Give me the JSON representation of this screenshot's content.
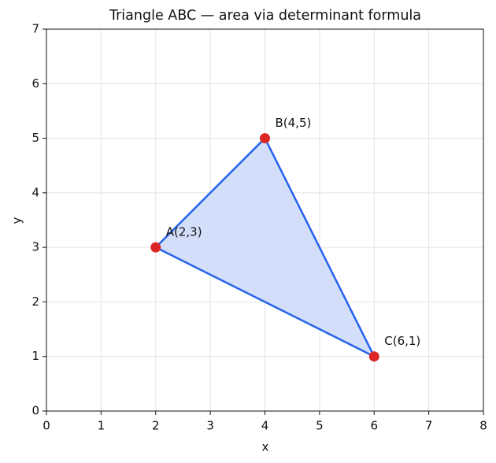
{
  "chart_data": {
    "type": "polygon",
    "title": "Triangle ABC — area via determinant formula",
    "x_label": "x",
    "y_label": "y",
    "x": [
      2,
      4,
      6
    ],
    "y": [
      3,
      5,
      1
    ],
    "point_labels": [
      "A(2,3)",
      "B(4,5)",
      "C(6,1)"
    ],
    "edge_color": "#2563eb",
    "fill_color": "#d2defa",
    "point_color": "#dc2626",
    "xlim": [
      0,
      8
    ],
    "ylim": [
      0,
      7
    ],
    "xticks": [
      0,
      1,
      2,
      3,
      4,
      5,
      6,
      7,
      8
    ],
    "yticks": [
      0,
      1,
      2,
      3,
      4,
      5,
      6,
      7
    ],
    "grid": true
  }
}
